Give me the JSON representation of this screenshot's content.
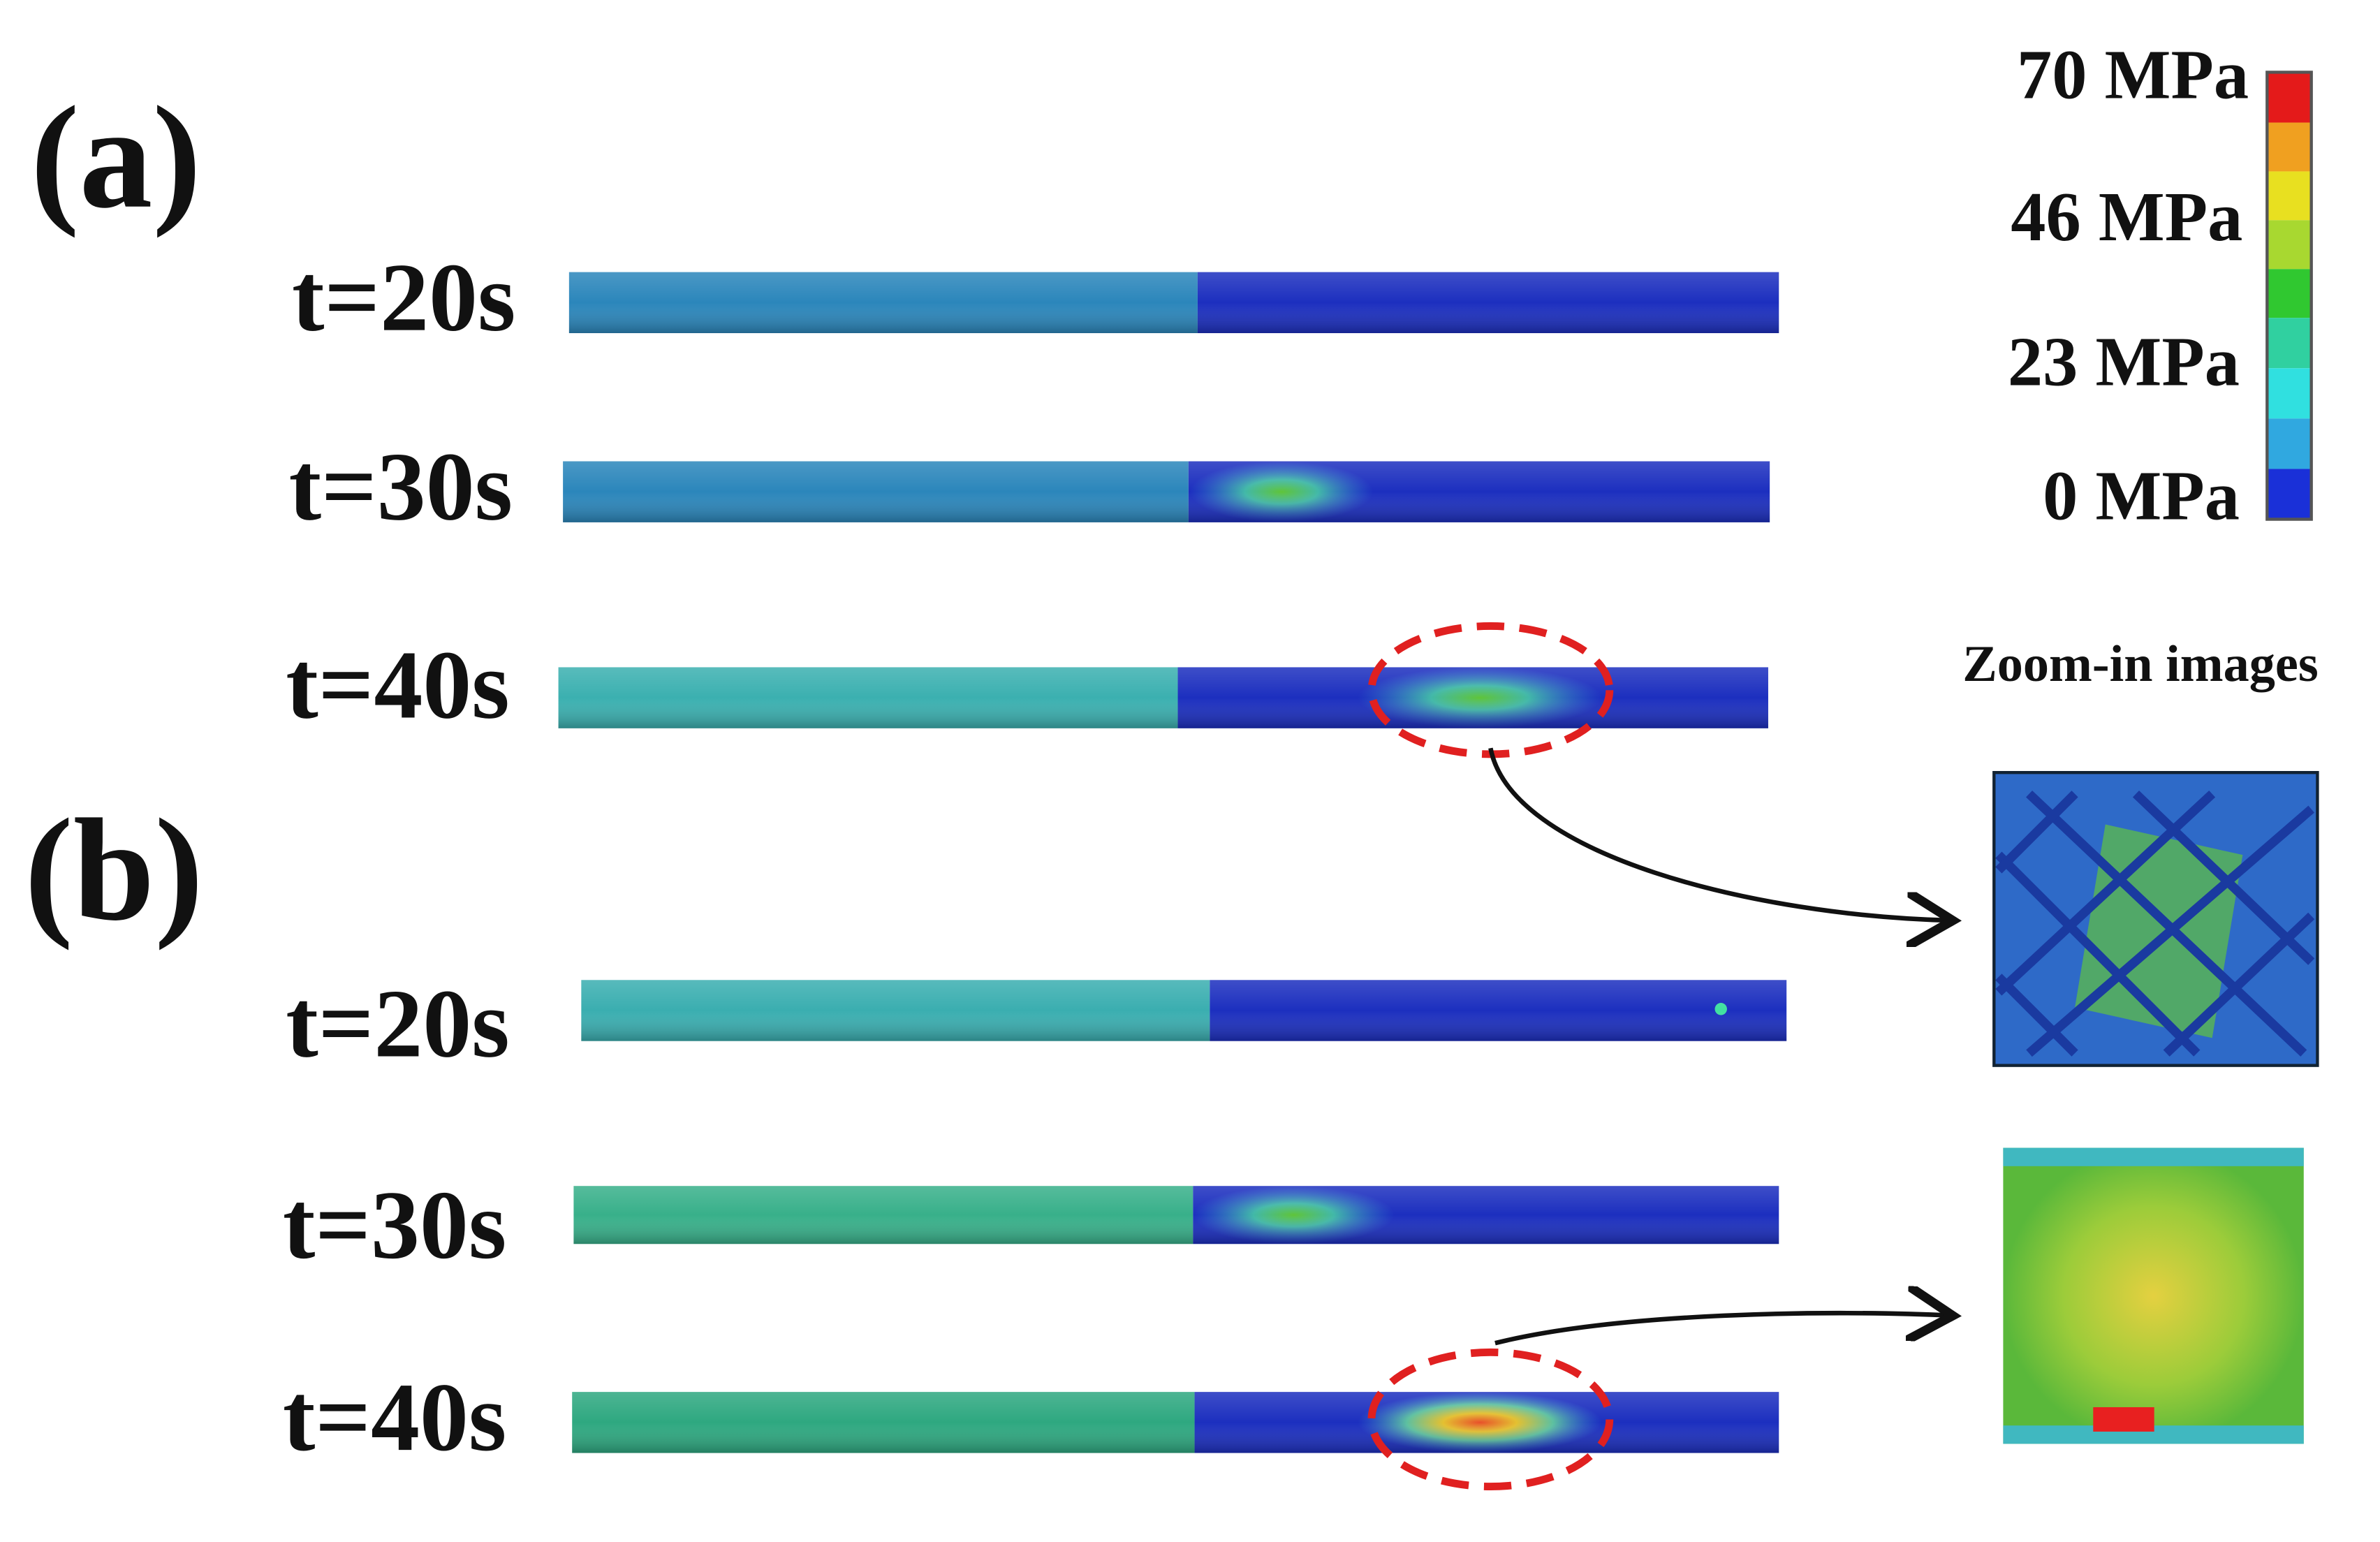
{
  "panels": [
    {
      "label": "(a)",
      "rows": [
        "t=20s",
        "t=30s",
        "t=40s"
      ]
    },
    {
      "label": "(b)",
      "rows": [
        "t=20s",
        "t=30s",
        "t=40s"
      ]
    }
  ],
  "colorbar": {
    "labels": [
      "70 MPa",
      "46 MPa",
      "23 MPa",
      "0 MPa"
    ]
  },
  "zoom": {
    "title": "Zoom-in images"
  }
}
